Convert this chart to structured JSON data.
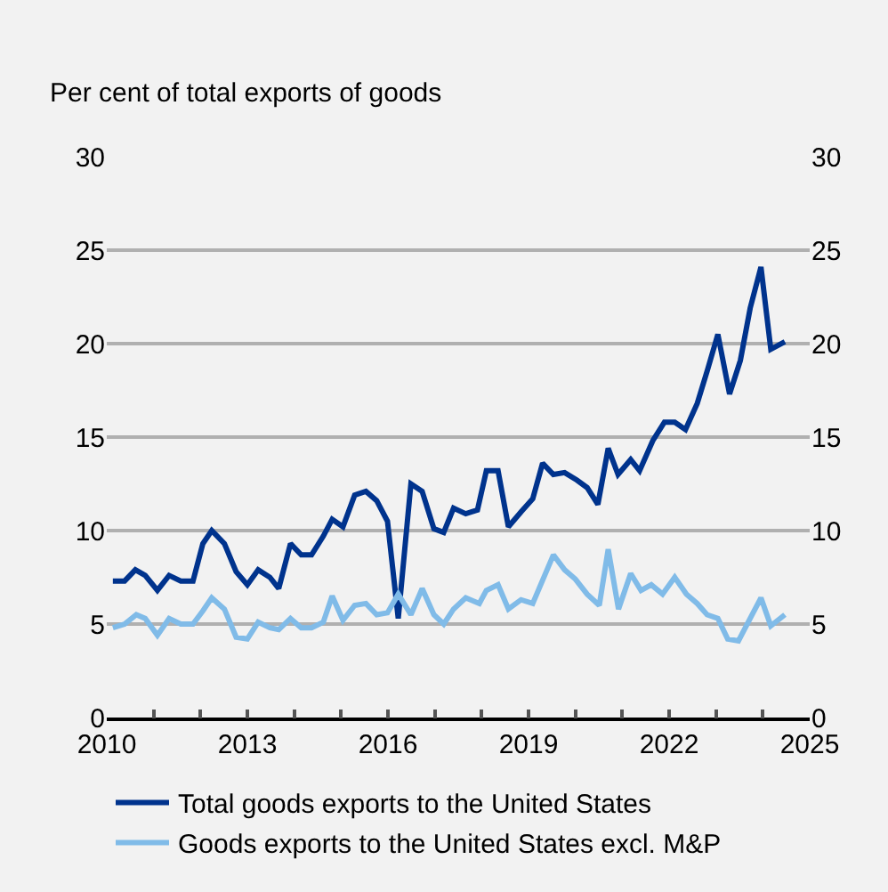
{
  "chart_data": {
    "type": "line",
    "ylabel": "Per cent of total exports of goods",
    "xlim": [
      2010,
      2025
    ],
    "xticks": [
      2010,
      {
        "value": 2011,
        "label": null
      },
      {
        "value": 2012,
        "label": null
      },
      2013,
      {
        "value": 2014,
        "label": null
      },
      {
        "value": 2015,
        "label": null
      },
      2016,
      {
        "value": 2017,
        "label": null
      },
      {
        "value": 2018,
        "label": null
      },
      2019,
      {
        "value": 2020,
        "label": null
      },
      {
        "value": 2021,
        "label": null
      },
      2022,
      {
        "value": 2023,
        "label": null
      },
      {
        "value": 2024,
        "label": null
      },
      2025
    ],
    "ylim": [
      0,
      30
    ],
    "yticks": [
      0,
      5,
      10,
      15,
      20,
      25,
      30
    ],
    "y2lim": [
      0,
      30
    ],
    "y2ticks": [
      0,
      5,
      10,
      15,
      20,
      25,
      30
    ],
    "grid": "y",
    "legend": "bottom",
    "line_style": "solid",
    "marker": "none",
    "series": [
      {
        "name": "Total goods exports to the United States",
        "color": "#00338d",
        "x": [
          2010.13,
          2010.38,
          2010.61,
          2010.82,
          2011.08,
          2011.33,
          2011.58,
          2011.84,
          2012.05,
          2012.24,
          2012.51,
          2012.76,
          2013.0,
          2013.23,
          2013.48,
          2013.67,
          2013.92,
          2014.15,
          2014.37,
          2014.62,
          2014.81,
          2015.04,
          2015.29,
          2015.53,
          2015.76,
          2015.99,
          2016.22,
          2016.49,
          2016.73,
          2016.98,
          2017.19,
          2017.4,
          2017.66,
          2017.91,
          2018.1,
          2018.35,
          2018.57,
          2018.84,
          2019.09,
          2019.3,
          2019.53,
          2019.77,
          2020.03,
          2020.25,
          2020.48,
          2020.7,
          2020.91,
          2021.18,
          2021.37,
          2021.65,
          2021.9,
          2022.12,
          2022.35,
          2022.6,
          2022.82,
          2023.04,
          2023.29,
          2023.52,
          2023.73,
          2023.96,
          2024.17,
          2024.47
        ],
        "values": [
          7.3,
          7.3,
          7.9,
          7.6,
          6.8,
          7.6,
          7.3,
          7.3,
          9.3,
          10.0,
          9.3,
          7.8,
          7.1,
          7.9,
          7.5,
          6.9,
          9.3,
          8.7,
          8.7,
          9.7,
          10.6,
          10.2,
          11.9,
          12.1,
          11.6,
          10.5,
          5.3,
          12.5,
          12.1,
          10.1,
          9.9,
          11.2,
          10.9,
          11.1,
          13.2,
          13.2,
          10.2,
          11.0,
          11.7,
          13.6,
          13.0,
          13.1,
          12.7,
          12.3,
          11.4,
          14.4,
          13.0,
          13.8,
          13.2,
          14.8,
          15.8,
          15.8,
          15.4,
          16.8,
          18.6,
          20.5,
          17.3,
          19.1,
          21.9,
          24.1,
          19.7,
          20.1
        ]
      },
      {
        "name": "Goods exports to the United States excl. M&P",
        "color": "#80bbe8",
        "x": [
          2010.13,
          2010.38,
          2010.63,
          2010.82,
          2011.08,
          2011.33,
          2011.58,
          2011.84,
          2012.05,
          2012.24,
          2012.51,
          2012.76,
          2013.0,
          2013.23,
          2013.48,
          2013.67,
          2013.92,
          2014.15,
          2014.37,
          2014.62,
          2014.81,
          2015.04,
          2015.29,
          2015.53,
          2015.76,
          2015.99,
          2016.22,
          2016.49,
          2016.73,
          2016.98,
          2017.19,
          2017.4,
          2017.66,
          2017.95,
          2018.1,
          2018.35,
          2018.57,
          2018.84,
          2019.09,
          2019.53,
          2019.77,
          2020.0,
          2020.25,
          2020.51,
          2020.7,
          2020.92,
          2021.18,
          2021.4,
          2021.62,
          2021.86,
          2022.12,
          2022.37,
          2022.6,
          2022.81,
          2023.04,
          2023.25,
          2023.48,
          2023.73,
          2023.96,
          2024.17,
          2024.47
        ],
        "values": [
          4.8,
          5.0,
          5.5,
          5.3,
          4.4,
          5.3,
          5.0,
          5.0,
          5.7,
          6.4,
          5.8,
          4.3,
          4.2,
          5.1,
          4.8,
          4.7,
          5.3,
          4.8,
          4.8,
          5.1,
          6.5,
          5.2,
          6.0,
          6.1,
          5.5,
          5.6,
          6.6,
          5.5,
          6.9,
          5.5,
          5.0,
          5.8,
          6.4,
          6.1,
          6.8,
          7.1,
          5.8,
          6.3,
          6.1,
          8.7,
          7.9,
          7.4,
          6.6,
          6.0,
          9.0,
          5.8,
          7.7,
          6.8,
          7.1,
          6.6,
          7.5,
          6.6,
          6.1,
          5.5,
          5.3,
          4.2,
          4.1,
          5.3,
          6.4,
          4.9,
          5.5
        ]
      }
    ]
  }
}
